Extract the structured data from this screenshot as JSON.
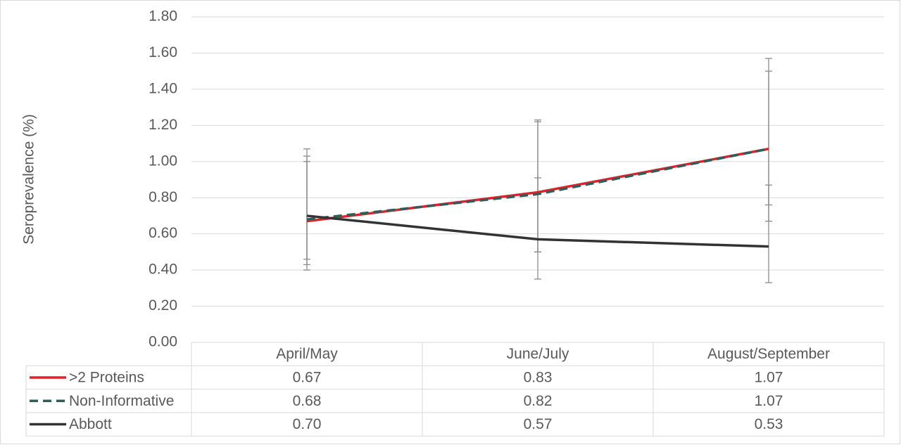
{
  "chart_data": {
    "type": "line",
    "y_label": "Seroprevalence (%)",
    "categories": [
      "April/May",
      "June/July",
      "August/September"
    ],
    "ylim": [
      0,
      1.8
    ],
    "yticks": [
      {
        "value": 0,
        "label": "0.00"
      },
      {
        "value": 0.2,
        "label": "0.20"
      },
      {
        "value": 0.4,
        "label": "0.40"
      },
      {
        "value": 0.6,
        "label": "0.60"
      },
      {
        "value": 0.8,
        "label": "0.80"
      },
      {
        "value": 1.0,
        "label": "1.00"
      },
      {
        "value": 1.2,
        "label": "1.20"
      },
      {
        "value": 1.4,
        "label": "1.40"
      },
      {
        "value": 1.6,
        "label": "1.60"
      },
      {
        "value": 1.8,
        "label": "1.80"
      }
    ],
    "grid": true,
    "series": [
      {
        "name": ">2 Proteins",
        "color": "#e3202a",
        "dashed": false,
        "values": [
          0.67,
          0.83,
          1.07
        ],
        "value_labels": [
          "0.67",
          "0.83",
          "1.07"
        ],
        "error_low": [
          0.46,
          0.5,
          0.76
        ],
        "error_high": [
          1.07,
          1.23,
          1.57
        ]
      },
      {
        "name": "Non-Informative",
        "color": "#2e5e5a",
        "dashed": true,
        "values": [
          0.68,
          0.82,
          1.07
        ],
        "value_labels": [
          "0.68",
          "0.82",
          "1.07"
        ],
        "error_low": [
          0.43,
          0.5,
          0.67
        ],
        "error_high": [
          1.03,
          1.22,
          1.5
        ]
      },
      {
        "name": "Abbott",
        "color": "#333333",
        "dashed": false,
        "values": [
          0.7,
          0.57,
          0.53
        ],
        "value_labels": [
          "0.70",
          "0.57",
          "0.53"
        ],
        "error_low": [
          0.4,
          0.35,
          0.33
        ],
        "error_high": [
          1.0,
          0.91,
          0.87
        ]
      }
    ]
  }
}
